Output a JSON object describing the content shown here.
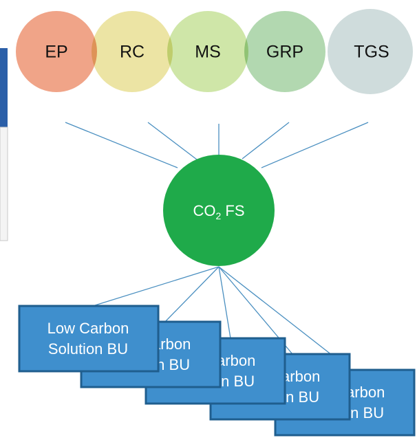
{
  "nodes": [
    {
      "label": "EP"
    },
    {
      "label": "RC"
    },
    {
      "label": "MS"
    },
    {
      "label": "GRP"
    },
    {
      "label": "TGS"
    }
  ],
  "center": {
    "label_parts": [
      "CO",
      "2",
      " FS"
    ]
  },
  "units": [
    {
      "lines": [
        "Low Carbon",
        "Solution BU"
      ]
    },
    {
      "lines": [
        "Low Carbon",
        "Solution BU"
      ]
    },
    {
      "lines": [
        "Low Carbon",
        "Solution BU"
      ]
    },
    {
      "lines": [
        "Low Carbon",
        "Solution BU"
      ]
    },
    {
      "lines": [
        "Low Carbon",
        "Solution BU"
      ]
    }
  ]
}
